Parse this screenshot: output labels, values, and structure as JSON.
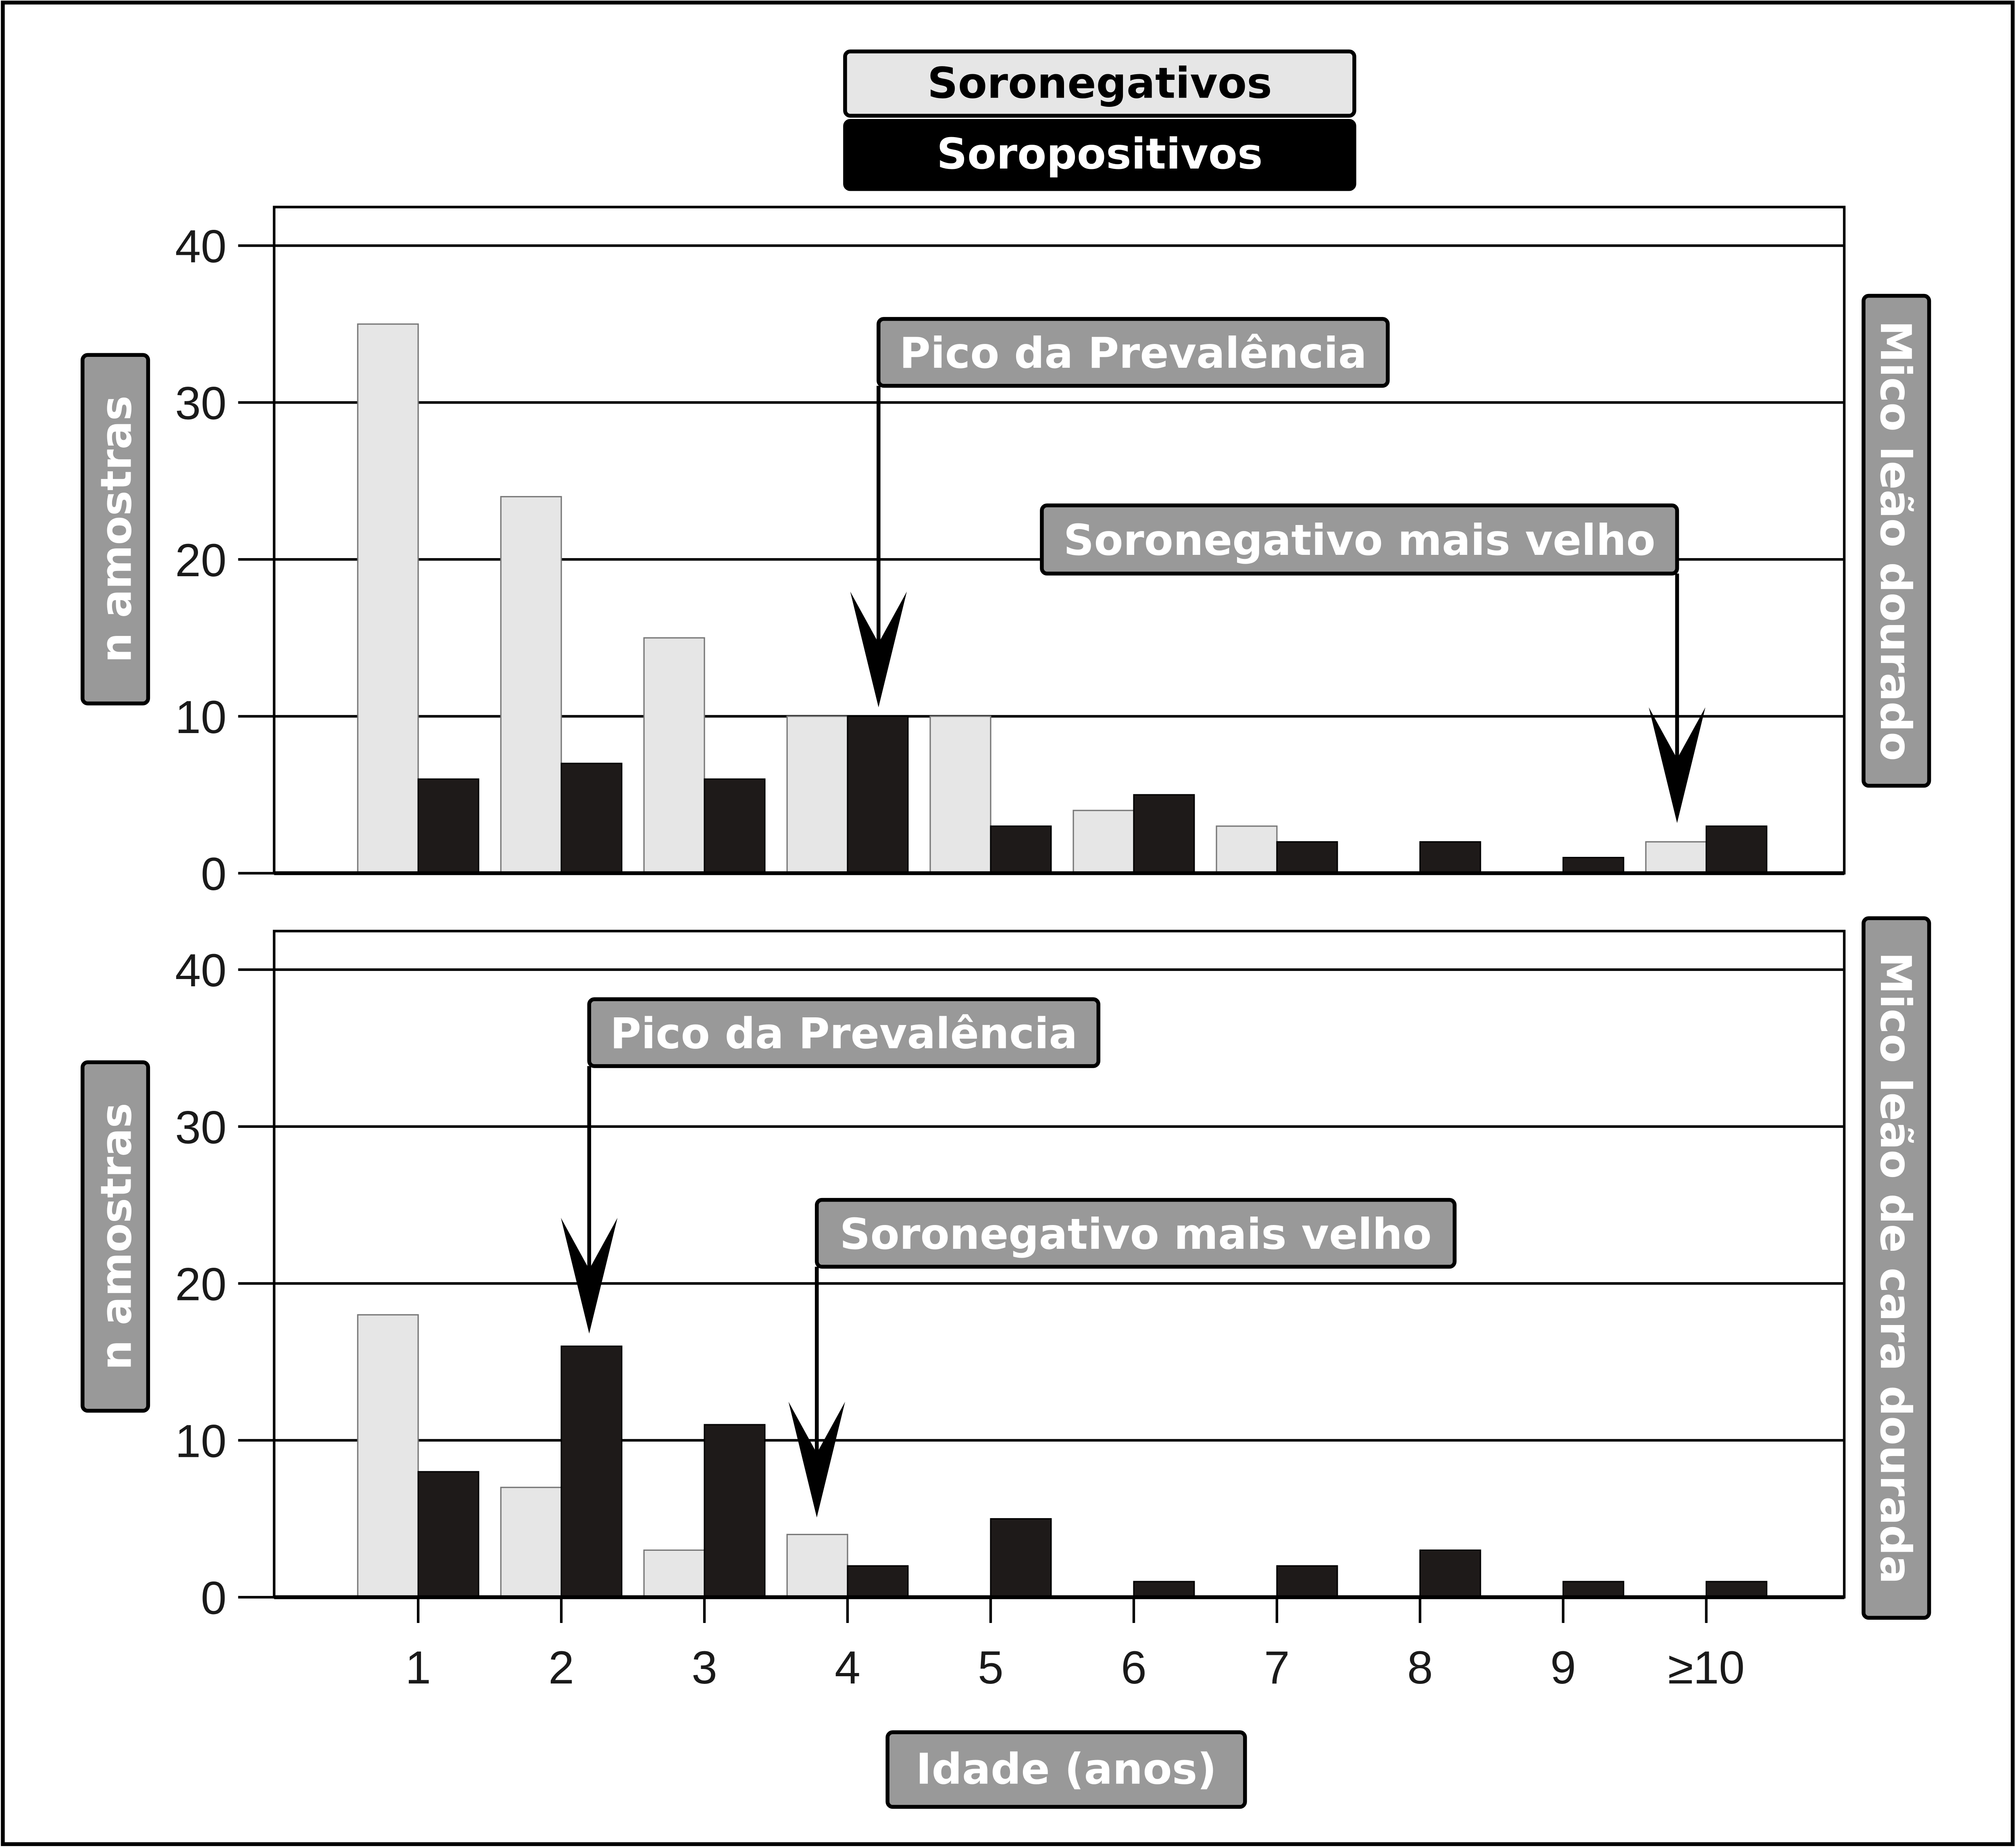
{
  "legend": {
    "negative": "Soronegativos",
    "positive": "Soropositivos"
  },
  "colors": {
    "negative": "#e6e6e6",
    "positive": "#1e1a19",
    "label_box": "#999999"
  },
  "xlabel": "Idade (anos)",
  "chart_data": [
    {
      "type": "bar",
      "panel": "top",
      "ylabel": "n amostras",
      "side_label": "Mico leão dourado",
      "categories": [
        "1",
        "2",
        "3",
        "4",
        "5",
        "6",
        "7",
        "8",
        "9",
        "≥10"
      ],
      "ylim": [
        0,
        40
      ],
      "yticks": [
        "0",
        "10",
        "20",
        "30",
        "40"
      ],
      "grid": true,
      "series": [
        {
          "name": "Soronegativos",
          "values": [
            35,
            24,
            15,
            10,
            10,
            4,
            3,
            0,
            0,
            2
          ]
        },
        {
          "name": "Soropositivos",
          "values": [
            6,
            7,
            6,
            10,
            3,
            5,
            2,
            2,
            1,
            3
          ]
        }
      ],
      "annotations": [
        {
          "text": "Pico da Prevalência",
          "category": "4"
        },
        {
          "text": "Soronegativo mais velho",
          "category": "≥10"
        }
      ]
    },
    {
      "type": "bar",
      "panel": "bottom",
      "ylabel": "n amostras",
      "side_label": "Mico leão de cara dourada",
      "categories": [
        "1",
        "2",
        "3",
        "4",
        "5",
        "6",
        "7",
        "8",
        "9",
        "≥10"
      ],
      "ylim": [
        0,
        40
      ],
      "yticks": [
        "0",
        "10",
        "20",
        "30",
        "40"
      ],
      "grid": true,
      "series": [
        {
          "name": "Soronegativos",
          "values": [
            18,
            7,
            3,
            4,
            0,
            0,
            0,
            0,
            0,
            0
          ]
        },
        {
          "name": "Soropositivos",
          "values": [
            8,
            16,
            11,
            2,
            5,
            1,
            2,
            3,
            1,
            1
          ]
        }
      ],
      "annotations": [
        {
          "text": "Pico da Prevalência",
          "category": "2"
        },
        {
          "text": "Soronegativo mais velho",
          "category": "4"
        }
      ]
    }
  ]
}
